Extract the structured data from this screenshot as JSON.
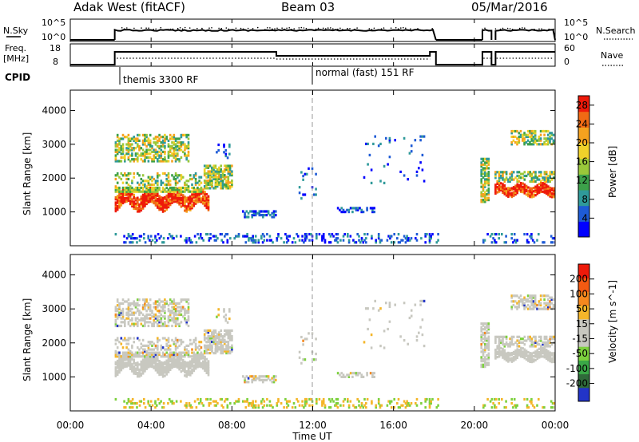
{
  "header": {
    "station": "Adak West (fitACF)",
    "beam": "Beam 03",
    "date": "05/Mar/2016"
  },
  "panels": {
    "nsky_label": "N.Sky",
    "nsky_ticks": [
      "10^5",
      "10^0"
    ],
    "nsearch_label": "N.Search",
    "freq_label_1": "Freq.",
    "freq_label_2": "[MHz]",
    "freq_ticks": [
      "18",
      "8"
    ],
    "nave_label": "Nave",
    "nave_ticks": [
      "60",
      "0"
    ],
    "cpid_label": "CPID",
    "cpid_segments": [
      {
        "label": "themis 3300 RF",
        "start_hour": 2.2
      },
      {
        "label": "normal (fast) 151 RF",
        "start_hour": 12.0
      }
    ]
  },
  "chart_data": [
    {
      "type": "heatmap",
      "name": "power",
      "ylabel": "Slant Range [km]",
      "ylim": [
        0,
        4600
      ],
      "yticks": [
        1000,
        2000,
        3000,
        4000
      ],
      "xlim": [
        0,
        24
      ],
      "colorbar": {
        "label": "Power [dB]",
        "ticks": [
          "4",
          "8",
          "12",
          "16",
          "20",
          "24",
          "28"
        ],
        "range": [
          0,
          30
        ],
        "colors": [
          "#0000ff",
          "#1e5bd6",
          "#2f9a9a",
          "#3ca04a",
          "#9ac83a",
          "#f0d22a",
          "#f5a21f",
          "#f06a14",
          "#ee1a0a"
        ]
      },
      "scatter_regions": [
        {
          "hours": [
            2.2,
            6.8
          ],
          "range_km": [
            1100,
            1700
          ],
          "level": "high"
        },
        {
          "hours": [
            2.2,
            8.0
          ],
          "range_km": [
            1800,
            3400
          ],
          "level": "mid"
        },
        {
          "hours": [
            8.5,
            10.2
          ],
          "range_km": [
            850,
            1050
          ],
          "level": "low"
        },
        {
          "hours": [
            13.2,
            15.0
          ],
          "range_km": [
            1000,
            1150
          ],
          "level": "low"
        },
        {
          "hours": [
            20.3,
            20.7
          ],
          "range_km": [
            1400,
            2500
          ],
          "level": "mid"
        },
        {
          "hours": [
            21.0,
            23.9
          ],
          "range_km": [
            1400,
            2200
          ],
          "level": "high"
        },
        {
          "hours": [
            21.8,
            23.9
          ],
          "range_km": [
            3000,
            3400
          ],
          "level": "mid"
        }
      ]
    },
    {
      "type": "heatmap",
      "name": "velocity",
      "ylabel": "Slant Range [km]",
      "ylim": [
        0,
        4600
      ],
      "yticks": [
        1000,
        2000,
        3000,
        4000
      ],
      "xlim": [
        0,
        24
      ],
      "colorbar": {
        "label": "Velocity [m s^-1]",
        "ticks": [
          "200",
          "100",
          "50",
          "15",
          "-15",
          "-50",
          "-100",
          "-200"
        ],
        "colors": [
          "#2234c8",
          "#2f6a3a",
          "#3aa847",
          "#7dd13e",
          "#c8c8c0",
          "#c8c8c0",
          "#f4b62a",
          "#f5881e",
          "#f45a12",
          "#ee1a0a"
        ]
      }
    }
  ],
  "xaxis": {
    "label": "Time UT",
    "ticks": [
      "00:00",
      "04:00",
      "08:00",
      "12:00",
      "16:00",
      "20:00",
      "00:00"
    ]
  }
}
